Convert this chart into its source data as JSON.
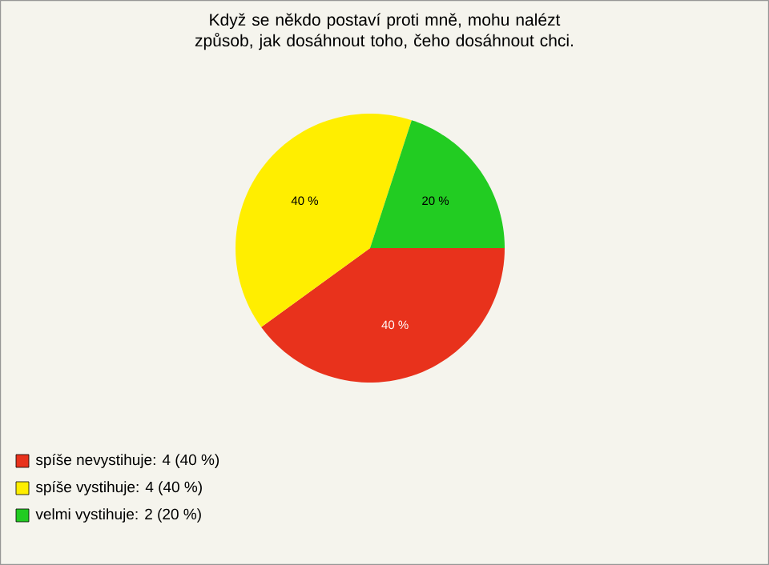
{
  "chart_data": {
    "type": "pie",
    "title": "Když se někdo postaví proti mně, mohu nalézt způsob, jak dosáhnout toho, čeho dosáhnout chci.",
    "categories": [
      "spíše nevystihuje: 4 (40 %)",
      "spíše vystihuje: 4 (40 %)",
      "velmi vystihuje: 2 (20 %)"
    ],
    "values": [
      40,
      40,
      20
    ],
    "value_labels": [
      "40 %",
      "40 %",
      "20 %"
    ],
    "colors": [
      "#e8321c",
      "#ffee00",
      "#22cc22"
    ],
    "legend": "bottom left"
  }
}
